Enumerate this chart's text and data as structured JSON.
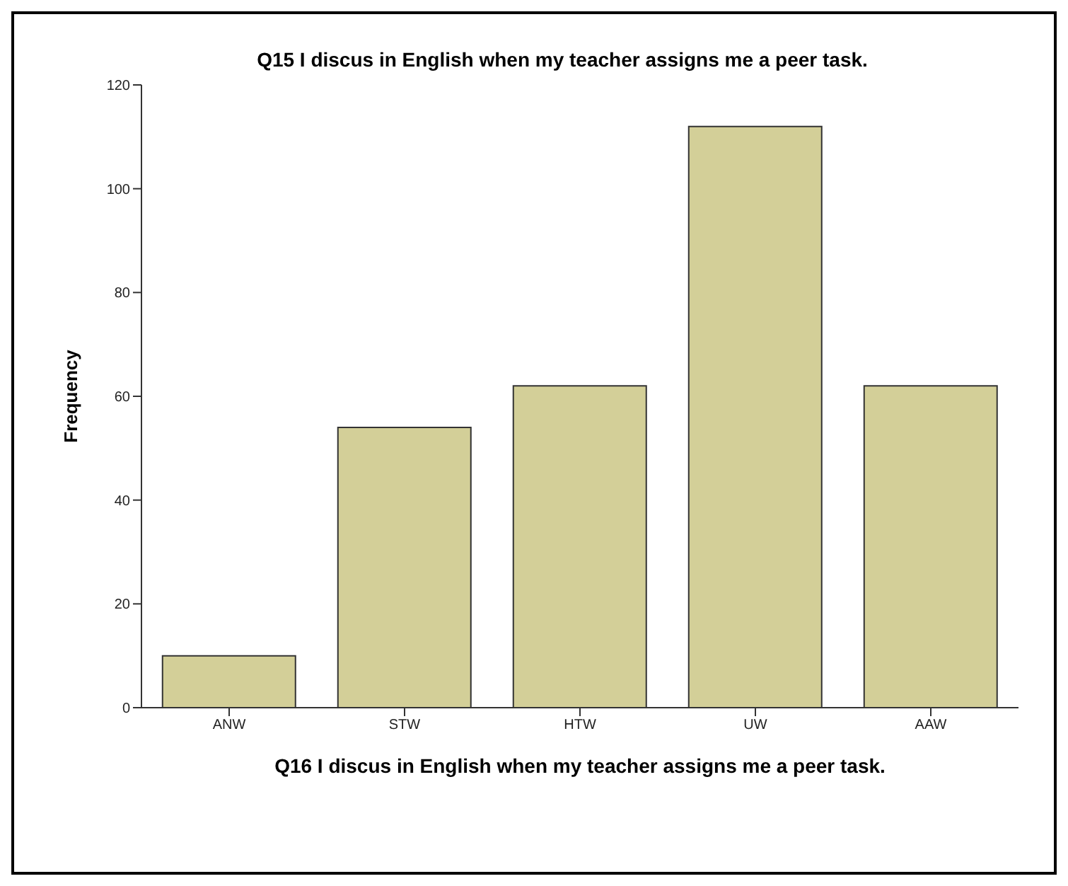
{
  "chart_data": {
    "type": "bar",
    "title": "Q15 I discus in English when my teacher assigns me a peer task.",
    "xlabel": "Q16 I discus in English when my teacher assigns me a peer task.",
    "ylabel": "Frequency",
    "categories": [
      "ANW",
      "STW",
      "HTW",
      "UW",
      "AAW"
    ],
    "values": [
      10,
      54,
      62,
      112,
      62
    ],
    "color": "#d3cf98",
    "ylim": [
      0,
      120
    ],
    "yticks": [
      0,
      20,
      40,
      60,
      80,
      100,
      120
    ],
    "grid": false
  }
}
